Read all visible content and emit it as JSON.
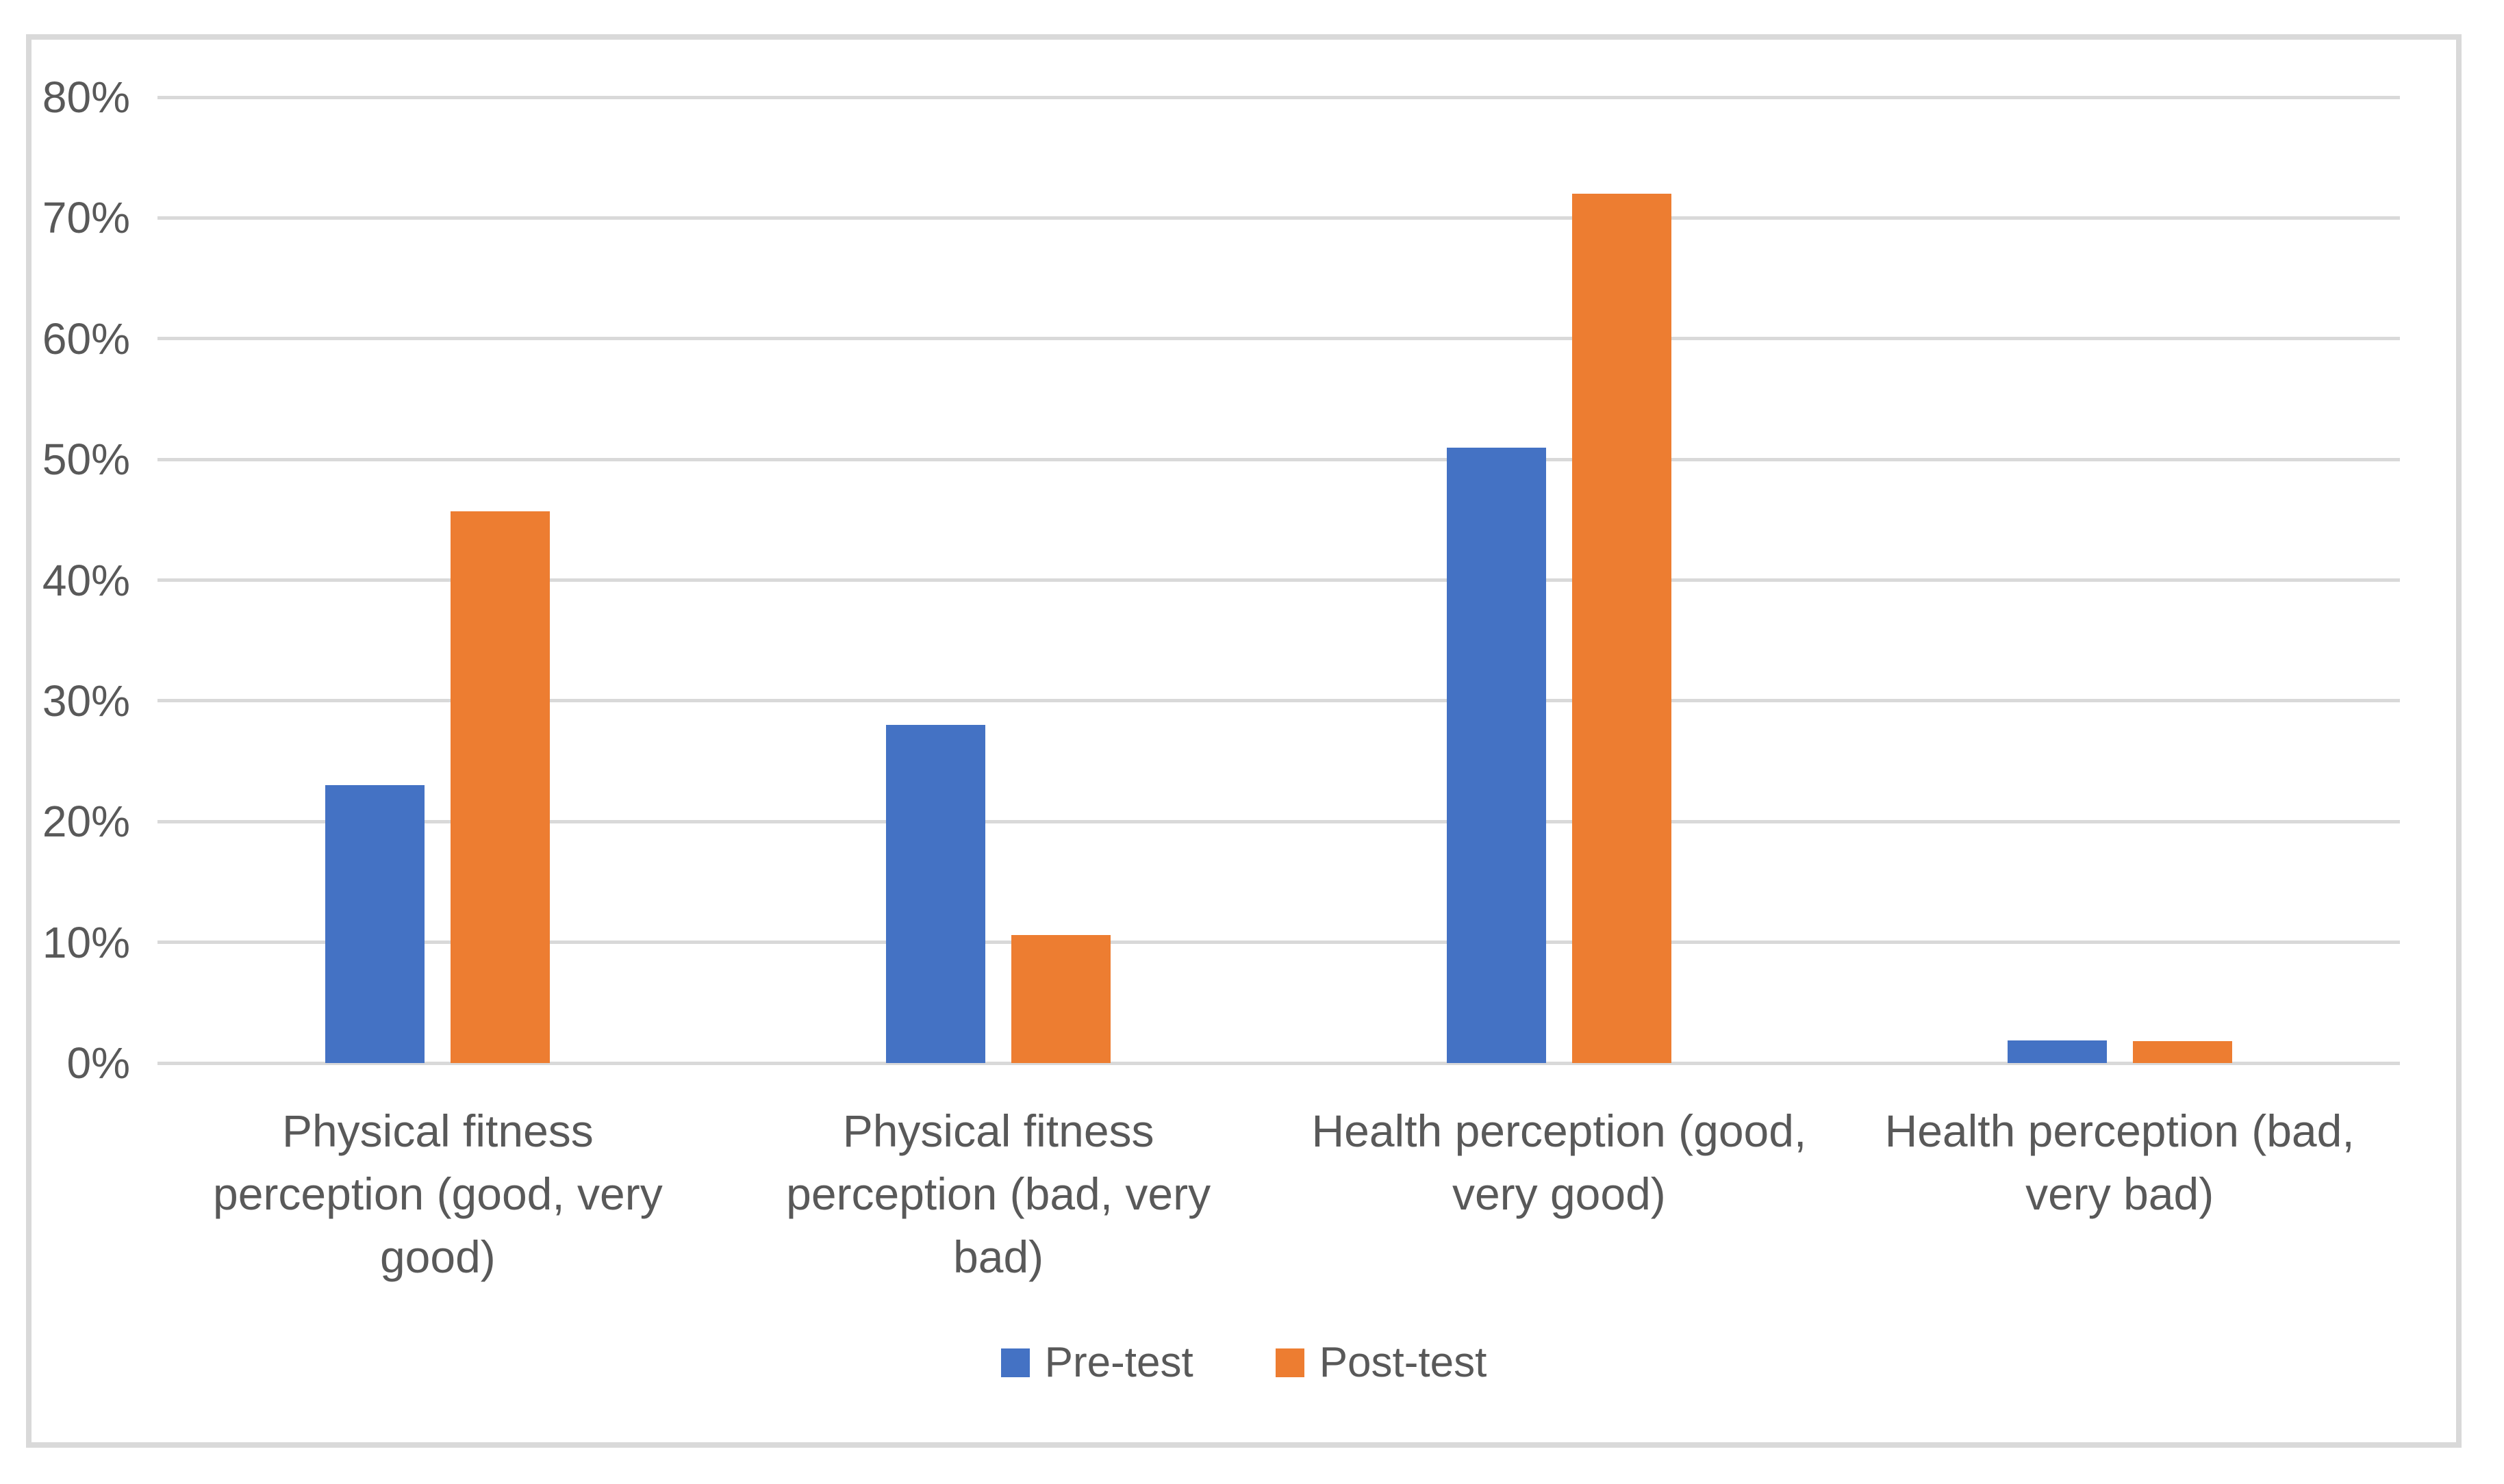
{
  "chart_data": {
    "type": "bar",
    "title": "",
    "categories": [
      "Physical fitness perception (good, very good)",
      "Physical fitness perception (bad, very bad)",
      "Health perception (good, very good)",
      "Health perception (bad, very bad)"
    ],
    "category_label_lines": [
      [
        "Physical fitness",
        "perception (good, very",
        "good)"
      ],
      [
        "Physical fitness",
        "perception (bad, very",
        "bad)"
      ],
      [
        "Health perception (good,",
        "very good)"
      ],
      [
        "Health perception (bad,",
        "very bad)"
      ]
    ],
    "series": [
      {
        "name": "Pre-test",
        "color": "#4472C4",
        "values": [
          23,
          28,
          51,
          1.9
        ]
      },
      {
        "name": "Post-test",
        "color": "#ED7D31",
        "values": [
          45.7,
          10.6,
          72,
          1.8
        ]
      }
    ],
    "y_axis": {
      "min": 0,
      "max": 80,
      "step": 10,
      "tick_labels": [
        "0%",
        "10%",
        "20%",
        "30%",
        "40%",
        "50%",
        "60%",
        "70%",
        "80%"
      ]
    },
    "grid": true,
    "legend_position": "bottom",
    "colors": {
      "gridline": "#D9D9D9",
      "border": "#D9D9D9",
      "text": "#595959",
      "background": "#FFFFFF"
    }
  }
}
